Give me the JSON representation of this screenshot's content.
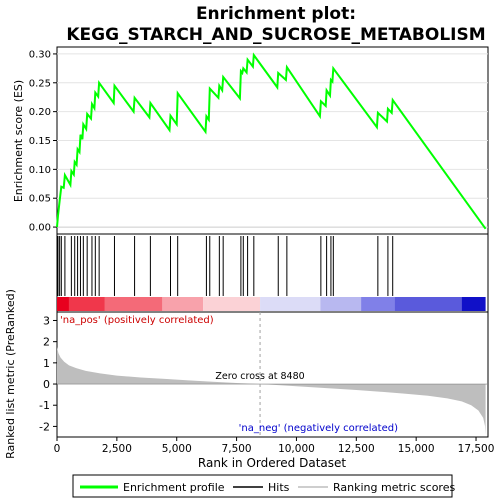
{
  "chart_data": {
    "type": "line",
    "title_line1": "Enrichment plot:",
    "title_line2": "KEGG_STARCH_AND_SUCROSE_METABOLISM",
    "es_panel": {
      "ylabel": "Enrichment score (ES)",
      "xlim": [
        0,
        18000
      ],
      "ylim": [
        -0.012,
        0.312
      ],
      "yticks": [
        0.0,
        0.05,
        0.1,
        0.15,
        0.2,
        0.25,
        0.3
      ],
      "ytick_labels": [
        "0.00",
        "0.05",
        "0.10",
        "0.15",
        "0.20",
        "0.25",
        "0.30"
      ],
      "line_color": "#00ff00",
      "points": [
        [
          0,
          0.0
        ],
        [
          40,
          0.02
        ],
        [
          110,
          0.045
        ],
        [
          180,
          0.07
        ],
        [
          280,
          0.068
        ],
        [
          330,
          0.09
        ],
        [
          560,
          0.073
        ],
        [
          600,
          0.097
        ],
        [
          700,
          0.091
        ],
        [
          740,
          0.113
        ],
        [
          820,
          0.108
        ],
        [
          860,
          0.135
        ],
        [
          940,
          0.13
        ],
        [
          980,
          0.16
        ],
        [
          1060,
          0.152
        ],
        [
          1100,
          0.178
        ],
        [
          1220,
          0.17
        ],
        [
          1260,
          0.196
        ],
        [
          1420,
          0.188
        ],
        [
          1460,
          0.213
        ],
        [
          1560,
          0.206
        ],
        [
          1600,
          0.233
        ],
        [
          1720,
          0.226
        ],
        [
          1760,
          0.25
        ],
        [
          2370,
          0.215
        ],
        [
          2400,
          0.245
        ],
        [
          3200,
          0.2
        ],
        [
          3240,
          0.224
        ],
        [
          3860,
          0.19
        ],
        [
          3900,
          0.215
        ],
        [
          4700,
          0.168
        ],
        [
          4740,
          0.193
        ],
        [
          5000,
          0.178
        ],
        [
          5040,
          0.232
        ],
        [
          6200,
          0.165
        ],
        [
          6240,
          0.192
        ],
        [
          6340,
          0.186
        ],
        [
          6380,
          0.24
        ],
        [
          6740,
          0.224
        ],
        [
          6780,
          0.245
        ],
        [
          6900,
          0.237
        ],
        [
          6940,
          0.26
        ],
        [
          7640,
          0.223
        ],
        [
          7680,
          0.27
        ],
        [
          7740,
          0.267
        ],
        [
          7780,
          0.275
        ],
        [
          7920,
          0.268
        ],
        [
          7960,
          0.29
        ],
        [
          8180,
          0.278
        ],
        [
          8220,
          0.298
        ],
        [
          9200,
          0.242
        ],
        [
          9240,
          0.267
        ],
        [
          9560,
          0.255
        ],
        [
          9600,
          0.277
        ],
        [
          10980,
          0.192
        ],
        [
          11020,
          0.218
        ],
        [
          11220,
          0.21
        ],
        [
          11260,
          0.237
        ],
        [
          11400,
          0.228
        ],
        [
          11440,
          0.255
        ],
        [
          11500,
          0.252
        ],
        [
          11540,
          0.275
        ],
        [
          13360,
          0.173
        ],
        [
          13400,
          0.198
        ],
        [
          13780,
          0.183
        ],
        [
          13820,
          0.205
        ],
        [
          13980,
          0.198
        ],
        [
          14020,
          0.22
        ],
        [
          17900,
          -0.003
        ]
      ]
    },
    "hits": [
      40,
      110,
      180,
      330,
      600,
      740,
      860,
      980,
      1100,
      1260,
      1460,
      1600,
      1760,
      2400,
      3240,
      3900,
      4740,
      5040,
      6240,
      6380,
      6780,
      6940,
      7680,
      7780,
      7960,
      8220,
      9240,
      9600,
      11020,
      11260,
      11440,
      11540,
      13400,
      13820,
      14020
    ],
    "heat_segments": [
      {
        "from": 0,
        "to": 500,
        "color": "#e8001e"
      },
      {
        "from": 500,
        "to": 2000,
        "color": "#f0374b"
      },
      {
        "from": 2000,
        "to": 4400,
        "color": "#f46a78"
      },
      {
        "from": 4400,
        "to": 6100,
        "color": "#f8a2ab"
      },
      {
        "from": 6100,
        "to": 8480,
        "color": "#fbd2d6"
      },
      {
        "from": 8480,
        "to": 11000,
        "color": "#dcdcf7"
      },
      {
        "from": 11000,
        "to": 12700,
        "color": "#b8b8f0"
      },
      {
        "from": 12700,
        "to": 14100,
        "color": "#8080e8"
      },
      {
        "from": 14100,
        "to": 16900,
        "color": "#5a5adc"
      },
      {
        "from": 16900,
        "to": 17900,
        "color": "#1010c8"
      }
    ],
    "metric_panel": {
      "ylabel": "Ranked list metric (PreRanked)",
      "xlabel": "Rank in Ordered Dataset",
      "xlim": [
        0,
        18000
      ],
      "ylim": [
        -2.5,
        3.4
      ],
      "yticks": [
        -2,
        -1,
        0,
        1,
        2,
        3
      ],
      "xticks": [
        0,
        2500,
        5000,
        7500,
        10000,
        12500,
        15000,
        17500
      ],
      "xtick_labels": [
        "0",
        "2,500",
        "5,000",
        "7,500",
        "10,000",
        "12,500",
        "15,000",
        "17,500"
      ],
      "fill_color": "#bebebe",
      "zero_cross": 8480,
      "zero_cross_label": "Zero cross at 8480",
      "pos_label": "'na_pos' (positively correlated)",
      "neg_label": "'na_neg' (negatively correlated)",
      "curve": [
        [
          0,
          1.75
        ],
        [
          60,
          1.45
        ],
        [
          150,
          1.25
        ],
        [
          300,
          1.05
        ],
        [
          500,
          0.88
        ],
        [
          800,
          0.75
        ],
        [
          1200,
          0.62
        ],
        [
          1800,
          0.5
        ],
        [
          2500,
          0.4
        ],
        [
          3500,
          0.31
        ],
        [
          4500,
          0.24
        ],
        [
          5500,
          0.17
        ],
        [
          6500,
          0.11
        ],
        [
          7500,
          0.05
        ],
        [
          8480,
          0.0
        ],
        [
          9500,
          -0.07
        ],
        [
          10500,
          -0.14
        ],
        [
          11500,
          -0.21
        ],
        [
          12500,
          -0.28
        ],
        [
          13500,
          -0.36
        ],
        [
          14500,
          -0.45
        ],
        [
          15500,
          -0.55
        ],
        [
          16300,
          -0.68
        ],
        [
          16900,
          -0.82
        ],
        [
          17300,
          -1.0
        ],
        [
          17600,
          -1.25
        ],
        [
          17800,
          -1.6
        ],
        [
          17880,
          -2.0
        ],
        [
          17900,
          -2.4
        ]
      ]
    },
    "legend": {
      "entries": [
        {
          "label": "Enrichment profile",
          "color": "#00ff00"
        },
        {
          "label": "Hits",
          "color": "#000000"
        },
        {
          "label": "Ranking metric scores",
          "color": "#bebebe"
        }
      ]
    }
  }
}
